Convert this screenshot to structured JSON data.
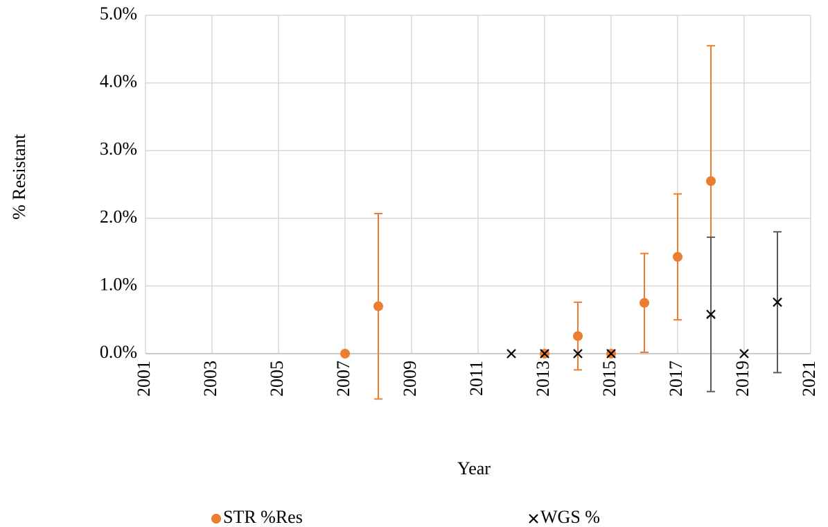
{
  "chart_data": {
    "type": "scatter",
    "x_label": "Year",
    "y_label": "% Resistant",
    "xlim": [
      2001,
      2021
    ],
    "xticks": [
      2001,
      2003,
      2005,
      2007,
      2009,
      2011,
      2013,
      2015,
      2017,
      2019,
      2021
    ],
    "ylim": [
      0,
      5
    ],
    "yticks": [
      {
        "value": 0,
        "label": "0.0%"
      },
      {
        "value": 1,
        "label": "1.0%"
      },
      {
        "value": 2,
        "label": "2.0%"
      },
      {
        "value": 3,
        "label": "3.0%"
      },
      {
        "value": 4,
        "label": "4.0%"
      },
      {
        "value": 5,
        "label": "5.0%"
      }
    ],
    "grid": true,
    "legend": "bottom",
    "series": [
      {
        "name": "STR %Res",
        "color": "#ed7d31",
        "marker": "circle",
        "error_color": "#ed7d31",
        "x": [
          2007,
          2008,
          2013,
          2014,
          2015,
          2016,
          2017,
          2018
        ],
        "values": [
          0,
          0.7,
          0,
          0.26,
          0,
          0.75,
          1.43,
          2.55
        ],
        "errors": [
          null,
          1.37,
          null,
          0.5,
          null,
          0.73,
          0.93,
          2.0
        ]
      },
      {
        "name": "WGS %",
        "color": "#000000",
        "marker": "x",
        "error_color": "#595959",
        "x": [
          2012,
          2013,
          2014,
          2015,
          2018,
          2019,
          2020
        ],
        "values": [
          0,
          0,
          0,
          0,
          0.58,
          0,
          0.76
        ],
        "errors": [
          null,
          null,
          null,
          null,
          1.14,
          null,
          1.04
        ]
      }
    ]
  }
}
